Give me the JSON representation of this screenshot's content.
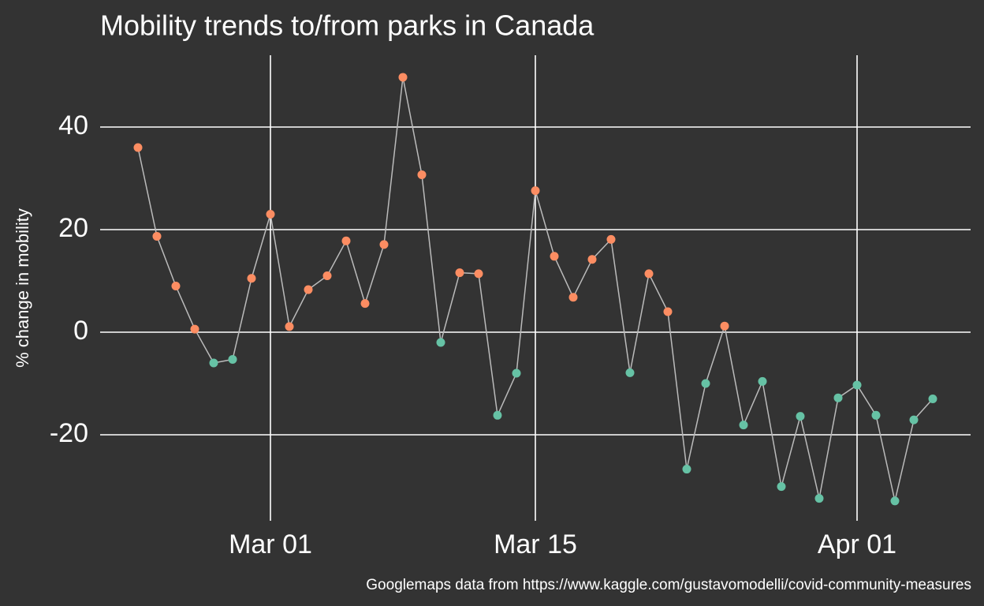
{
  "chart_data": {
    "type": "line",
    "title": "Mobility trends to/from parks in Canada",
    "y_label": "% change in mobility",
    "caption": "Googlemaps data from https://www.kaggle.com/gustavomodelli/covid-community-measures",
    "x": [
      "02-23",
      "02-24",
      "02-25",
      "02-26",
      "02-27",
      "02-28",
      "02-29",
      "03-01",
      "03-02",
      "03-03",
      "03-04",
      "03-05",
      "03-06",
      "03-07",
      "03-08",
      "03-09",
      "03-10",
      "03-11",
      "03-12",
      "03-13",
      "03-14",
      "03-15",
      "03-16",
      "03-17",
      "03-18",
      "03-19",
      "03-20",
      "03-21",
      "03-22",
      "03-23",
      "03-24",
      "03-25",
      "03-26",
      "03-27",
      "03-28",
      "03-29",
      "03-30",
      "03-31",
      "04-01",
      "04-02",
      "04-03",
      "04-04",
      "04-05"
    ],
    "values": [
      36.0,
      18.7,
      9.0,
      0.6,
      -6.0,
      -5.3,
      10.5,
      23.0,
      1.1,
      8.3,
      11.0,
      17.8,
      5.6,
      17.1,
      49.7,
      30.7,
      -2.0,
      11.6,
      11.4,
      -16.2,
      -8.0,
      27.6,
      14.8,
      6.8,
      14.2,
      18.1,
      -7.9,
      11.4,
      4.0,
      -26.7,
      -10.0,
      1.2,
      -18.1,
      -9.6,
      -30.1,
      -16.4,
      -32.4,
      -12.8,
      -10.3,
      -16.2,
      -32.9,
      -17.1,
      -13.0
    ],
    "line_color": "#bbbbbb",
    "point_colors": {
      "above_zero": "#fc8d62",
      "below_zero": "#66c2a5"
    },
    "xlim": [
      "02-21",
      "04-07"
    ],
    "xticks": [
      {
        "value": "03-01",
        "label": "Mar 01"
      },
      {
        "value": "03-15",
        "label": "Mar 15"
      },
      {
        "value": "04-01",
        "label": "Apr 01"
      }
    ],
    "ylim": [
      -36,
      54
    ],
    "yticks": [
      -20,
      0,
      20,
      40
    ],
    "grid": true
  }
}
